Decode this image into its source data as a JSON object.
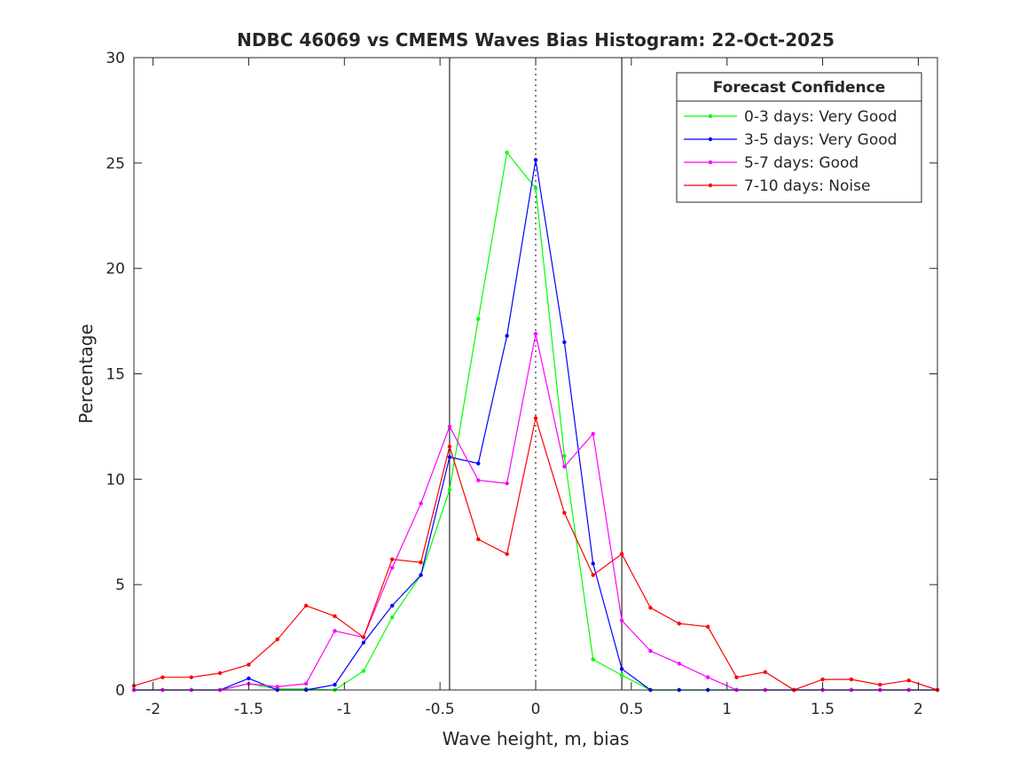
{
  "chart_data": {
    "type": "line",
    "title": "NDBC 46069 vs CMEMS Waves Bias Histogram: 22-Oct-2025",
    "xlabel": "Wave height, m, bias",
    "ylabel": "Percentage",
    "xlim": [
      -2.1,
      2.1
    ],
    "ylim": [
      0,
      30
    ],
    "xticks": [
      -2,
      -1.5,
      -1,
      -0.5,
      0,
      0.5,
      1,
      1.5,
      2
    ],
    "xtick_labels": [
      "-2",
      "-1.5",
      "-1",
      "-0.5",
      "0",
      "0.5",
      "1",
      "1.5",
      "2"
    ],
    "yticks": [
      0,
      5,
      10,
      15,
      20,
      25,
      30
    ],
    "ytick_labels": [
      "0",
      "5",
      "10",
      "15",
      "20",
      "25",
      "30"
    ],
    "vertical_lines": [
      {
        "x": -0.45,
        "style": "solid"
      },
      {
        "x": 0,
        "style": "dotted"
      },
      {
        "x": 0.45,
        "style": "solid"
      }
    ],
    "legend": {
      "title": "Forecast Confidence",
      "position": "top-right"
    },
    "x": [
      -2.1,
      -1.95,
      -1.8,
      -1.65,
      -1.5,
      -1.35,
      -1.2,
      -1.05,
      -0.9,
      -0.75,
      -0.6,
      -0.45,
      -0.3,
      -0.15,
      0,
      0.15,
      0.3,
      0.45,
      0.6,
      0.75,
      0.9,
      1.05,
      1.2,
      1.35,
      1.5,
      1.65,
      1.8,
      1.95,
      2.1
    ],
    "series": [
      {
        "name": "0-3 days: Very Good",
        "color": "#00ff00",
        "values": [
          0,
          0,
          0,
          0,
          0.3,
          0.05,
          0.05,
          0,
          0.9,
          3.45,
          5.45,
          9.5,
          17.6,
          25.5,
          23.8,
          11.1,
          1.45,
          0.7,
          0,
          0,
          0,
          0,
          0,
          0,
          0,
          0,
          0,
          0,
          0
        ]
      },
      {
        "name": "3-5 days: Very Good",
        "color": "#0000ff",
        "values": [
          0,
          0,
          0,
          0,
          0.55,
          0,
          0,
          0.25,
          2.25,
          4.0,
          5.45,
          11.05,
          10.75,
          16.8,
          25.15,
          16.5,
          6.0,
          1.0,
          0,
          0,
          0,
          0,
          0,
          0,
          0,
          0,
          0,
          0,
          0
        ]
      },
      {
        "name": "5-7 days: Good",
        "color": "#ff00ff",
        "values": [
          0,
          0,
          0,
          0,
          0.3,
          0.15,
          0.3,
          2.8,
          2.5,
          5.8,
          8.85,
          12.5,
          9.95,
          9.8,
          16.9,
          10.6,
          12.15,
          3.3,
          1.85,
          1.25,
          0.6,
          0,
          0,
          0,
          0,
          0,
          0,
          0,
          0
        ]
      },
      {
        "name": "7-10 days: Noise",
        "color": "#ff0000",
        "values": [
          0.2,
          0.6,
          0.6,
          0.8,
          1.2,
          2.4,
          4.0,
          3.5,
          2.5,
          6.2,
          6.05,
          11.55,
          7.15,
          6.45,
          12.9,
          8.4,
          5.45,
          6.45,
          3.9,
          3.15,
          3.0,
          0.6,
          0.85,
          0,
          0.5,
          0.5,
          0.25,
          0.45,
          0
        ]
      }
    ]
  }
}
